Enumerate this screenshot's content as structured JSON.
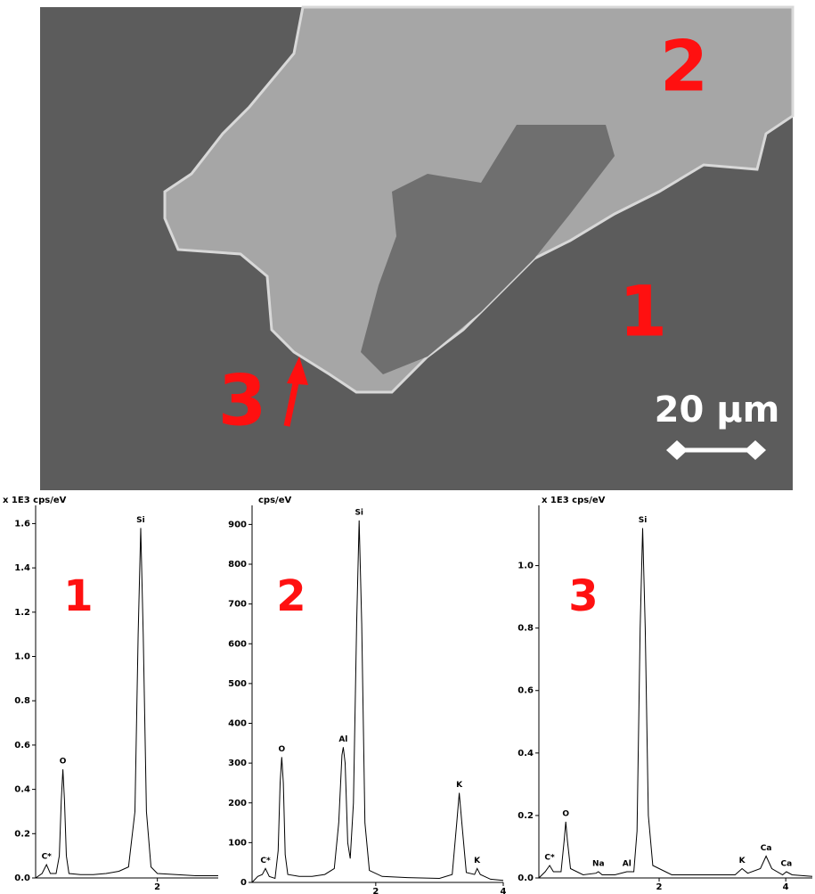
{
  "micrograph": {
    "region_labels": [
      "2",
      "1",
      "3"
    ],
    "scale_bar": "20 µm"
  },
  "chart_data": [
    {
      "type": "line",
      "y_label": "x 1E3 cps/eV",
      "panel_label": "1",
      "color": "#000000",
      "x": [
        0.1,
        0.2,
        0.27,
        0.33,
        0.42,
        0.47,
        0.5,
        0.525,
        0.55,
        0.58,
        0.62,
        0.8,
        1.0,
        1.2,
        1.4,
        1.55,
        1.65,
        1.7,
        1.74,
        1.78,
        1.83,
        1.9,
        2.0,
        2.3,
        2.6,
        2.95
      ],
      "values": [
        0.0,
        0.02,
        0.06,
        0.02,
        0.02,
        0.1,
        0.35,
        0.49,
        0.35,
        0.1,
        0.02,
        0.015,
        0.015,
        0.02,
        0.03,
        0.05,
        0.3,
        1.1,
        1.58,
        1.1,
        0.3,
        0.05,
        0.02,
        0.015,
        0.01,
        0.01
      ],
      "annotations": [
        {
          "text": "C*",
          "x": 0.27,
          "y": 0.06
        },
        {
          "text": "O",
          "x": 0.525,
          "y": 0.49
        },
        {
          "text": "Si",
          "x": 1.74,
          "y": 1.58
        }
      ],
      "xlim": [
        0.1,
        2.95
      ],
      "ylim": [
        0,
        1.65
      ],
      "xticks": [
        2
      ],
      "yticks": [
        {
          "value": 0,
          "label": "0.0"
        },
        0.2,
        0.4,
        0.6,
        0.8,
        {
          "value": 1,
          "label": "1.0"
        },
        1.2,
        1.4,
        1.6
      ]
    },
    {
      "type": "line",
      "y_label": "cps/eV",
      "panel_label": "2",
      "color": "#000000",
      "x": [
        0.06,
        0.15,
        0.22,
        0.27,
        0.33,
        0.42,
        0.47,
        0.5,
        0.525,
        0.55,
        0.58,
        0.62,
        0.8,
        1.0,
        1.2,
        1.35,
        1.42,
        1.47,
        1.49,
        1.52,
        1.56,
        1.6,
        1.65,
        1.7,
        1.74,
        1.78,
        1.83,
        1.9,
        2.1,
        2.5,
        3.0,
        3.2,
        3.27,
        3.31,
        3.35,
        3.42,
        3.55,
        3.59,
        3.64,
        3.8,
        4.0
      ],
      "values": [
        0,
        15,
        20,
        35,
        15,
        10,
        80,
        250,
        315,
        250,
        70,
        20,
        15,
        15,
        20,
        35,
        150,
        320,
        340,
        300,
        100,
        60,
        200,
        650,
        910,
        650,
        150,
        30,
        15,
        12,
        10,
        20,
        150,
        225,
        150,
        25,
        20,
        35,
        20,
        8,
        5
      ],
      "annotations": [
        {
          "text": "C*",
          "x": 0.27,
          "y": 35
        },
        {
          "text": "O",
          "x": 0.525,
          "y": 315
        },
        {
          "text": "Al",
          "x": 1.49,
          "y": 340
        },
        {
          "text": "Si",
          "x": 1.74,
          "y": 910
        },
        {
          "text": "K",
          "x": 3.31,
          "y": 225
        },
        {
          "text": "K",
          "x": 3.59,
          "y": 35
        }
      ],
      "xlim": [
        0.06,
        4.0
      ],
      "ylim": [
        0,
        930
      ],
      "xticks": [
        2,
        4
      ],
      "yticks": [
        0,
        100,
        200,
        300,
        400,
        500,
        600,
        700,
        800,
        900
      ]
    },
    {
      "type": "line",
      "y_label": "x 1E3 cps/eV",
      "panel_label": "3",
      "color": "#000000",
      "x": [
        0.1,
        0.2,
        0.27,
        0.33,
        0.45,
        0.5,
        0.525,
        0.55,
        0.6,
        0.8,
        1.0,
        1.04,
        1.1,
        1.3,
        1.49,
        1.6,
        1.65,
        1.7,
        1.74,
        1.78,
        1.83,
        1.9,
        2.2,
        2.8,
        3.2,
        3.31,
        3.4,
        3.6,
        3.69,
        3.78,
        3.95,
        4.01,
        4.1,
        4.42
      ],
      "values": [
        0.0,
        0.02,
        0.04,
        0.02,
        0.02,
        0.12,
        0.18,
        0.12,
        0.03,
        0.01,
        0.015,
        0.02,
        0.01,
        0.01,
        0.02,
        0.02,
        0.15,
        0.8,
        1.12,
        0.8,
        0.2,
        0.04,
        0.01,
        0.01,
        0.01,
        0.03,
        0.015,
        0.03,
        0.07,
        0.03,
        0.01,
        0.02,
        0.01,
        0.005
      ],
      "annotations": [
        {
          "text": "C*",
          "x": 0.27,
          "y": 0.04
        },
        {
          "text": "O",
          "x": 0.525,
          "y": 0.18
        },
        {
          "text": "Na",
          "x": 1.04,
          "y": 0.02
        },
        {
          "text": "Al",
          "x": 1.49,
          "y": 0.02
        },
        {
          "text": "Si",
          "x": 1.74,
          "y": 1.12
        },
        {
          "text": "K",
          "x": 3.31,
          "y": 0.03
        },
        {
          "text": "Ca",
          "x": 3.69,
          "y": 0.07
        },
        {
          "text": "Ca",
          "x": 4.01,
          "y": 0.02
        }
      ],
      "xlim": [
        0.1,
        4.42
      ],
      "ylim": [
        0,
        1.17
      ],
      "xticks": [
        2,
        4
      ],
      "yticks": [
        {
          "value": 0,
          "label": "0.0"
        },
        0.2,
        0.4,
        0.6,
        0.8,
        {
          "value": 1,
          "label": "1.0"
        }
      ]
    }
  ]
}
